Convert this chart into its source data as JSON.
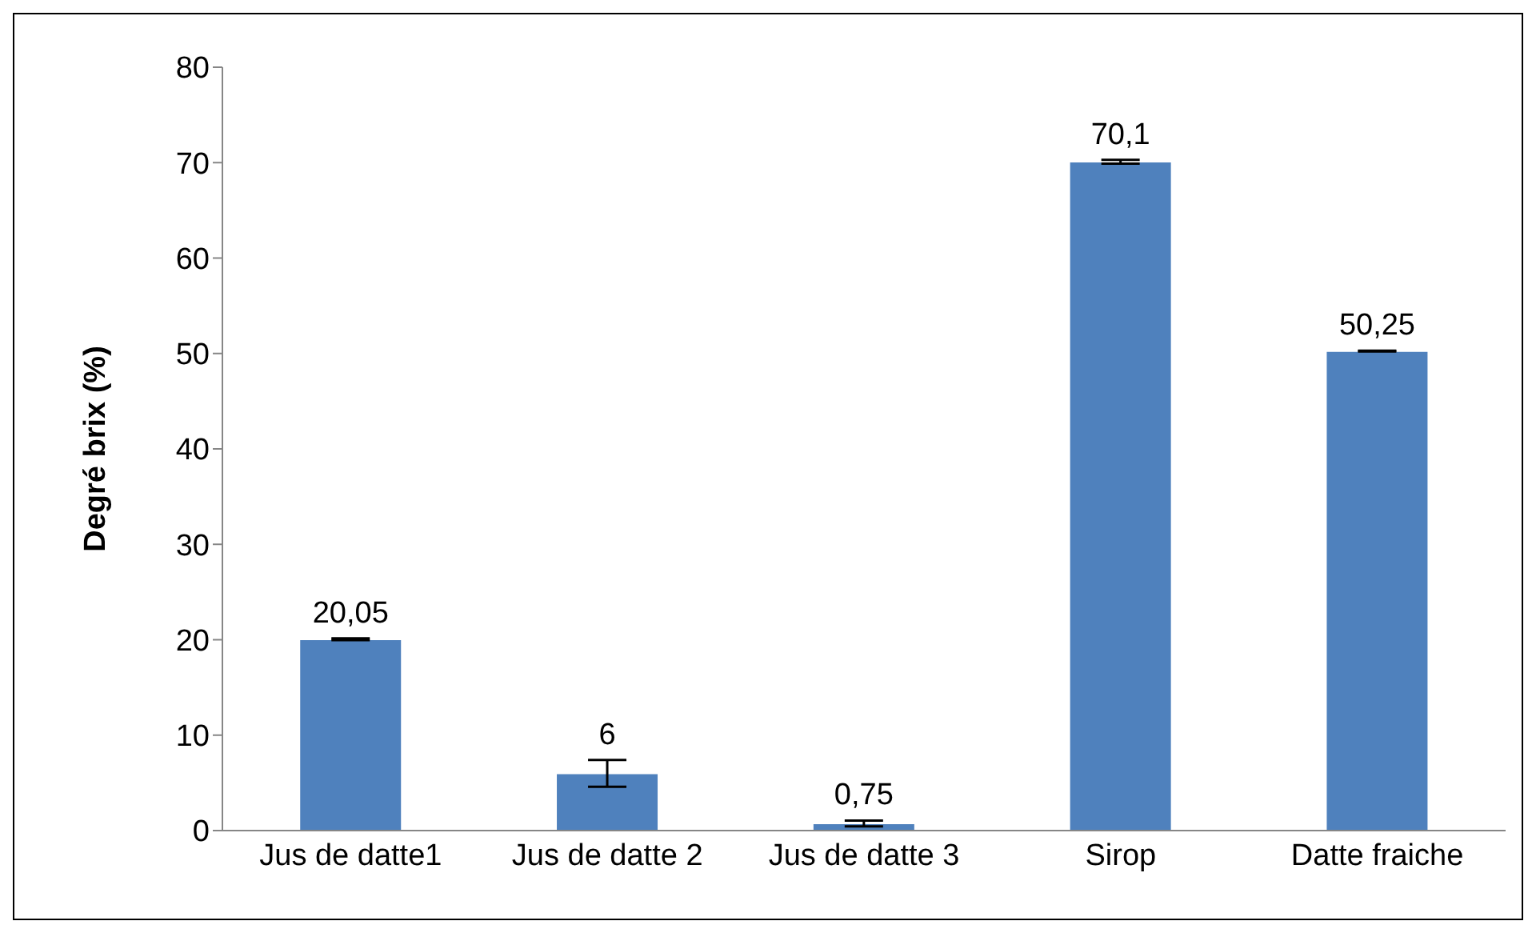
{
  "chart_data": {
    "type": "bar",
    "ylabel": "Degré brix (%)",
    "categories": [
      "Jus de datte1",
      "Jus de datte 2",
      "Jus de datte 3",
      "Sirop",
      "Datte fraiche"
    ],
    "values": [
      20.05,
      6,
      0.75,
      70.1,
      50.25
    ],
    "value_labels": [
      "20,05",
      "6",
      "0,75",
      "70,1",
      "50,25"
    ],
    "errors": [
      0.1,
      1.4,
      0.3,
      0.2,
      0.05
    ],
    "color": "#4f81bd",
    "ylim": [
      0,
      80
    ],
    "yticks": [
      0,
      10,
      20,
      30,
      40,
      50,
      60,
      70,
      80
    ],
    "grid": false,
    "legend": false
  }
}
